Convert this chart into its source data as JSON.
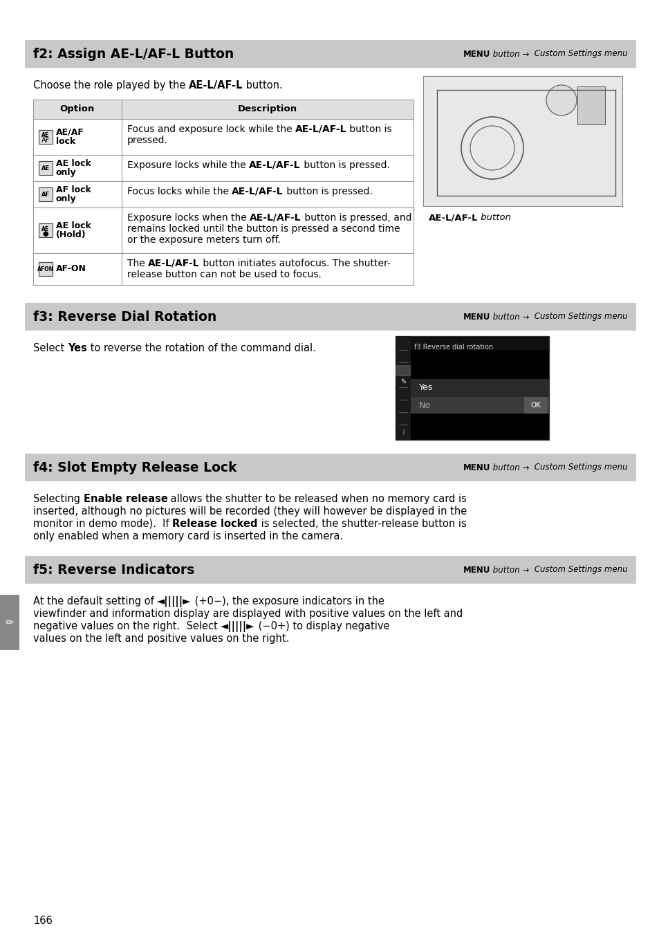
{
  "page_bg": "#ffffff",
  "page_number": "166",
  "f2_title": "f2: Assign AE-L/AF-L Button",
  "f2_menu_text_plain": "MENU",
  "f2_menu_text_italic": " button → ",
  "f2_menu_text_plain2": " Custom Settings menu",
  "f2_intro_plain": "Choose the role played by the ",
  "f2_intro_bold": "AE-L/AF-L",
  "f2_intro_plain2": " button.",
  "f2_col1_header": "Option",
  "f2_col2_header": "Description",
  "f2_rows": [
    {
      "icon_top": "AE",
      "icon_bot": "AF",
      "label_line1": "AE/AF",
      "label_line2": "lock",
      "desc": [
        [
          "Focus and exposure lock while the ",
          false
        ],
        [
          "AE-L/AF-L",
          true
        ],
        [
          " button is",
          false
        ],
        [
          "\npressed.",
          false
        ]
      ]
    },
    {
      "icon_top": "AE",
      "icon_bot": "",
      "label_line1": "AE lock",
      "label_line2": "only",
      "desc": [
        [
          "Exposure locks while the ",
          false
        ],
        [
          "AE-L/AF-L",
          true
        ],
        [
          " button is pressed.",
          false
        ]
      ]
    },
    {
      "icon_top": "AF",
      "icon_bot": "",
      "label_line1": "AF lock",
      "label_line2": "only",
      "desc": [
        [
          "Focus locks while the ",
          false
        ],
        [
          "AE-L/AF-L",
          true
        ],
        [
          " button is pressed.",
          false
        ]
      ]
    },
    {
      "icon_top": "AE",
      "icon_bot": "●",
      "label_line1": "AE lock",
      "label_line2": "(Hold)",
      "desc": [
        [
          "Exposure locks when the ",
          false
        ],
        [
          "AE-L/AF-L",
          true
        ],
        [
          " button is pressed, and",
          false
        ],
        [
          "\nremains locked until the button is pressed a second time",
          false
        ],
        [
          "\nor the exposure meters turn off.",
          false
        ]
      ]
    },
    {
      "icon_top": "AFON",
      "icon_bot": "",
      "label_line1": "AF-ON",
      "label_line2": "",
      "desc": [
        [
          "The ",
          false
        ],
        [
          "AE-L/AF-L",
          true
        ],
        [
          " button initiates autofocus. The shutter-",
          false
        ],
        [
          "\nrelease button can not be used to focus.",
          false
        ]
      ]
    }
  ],
  "cam_caption_bold": "AE-L/AF-L",
  "cam_caption_italic": " button",
  "f3_title": "f3: Reverse Dial Rotation",
  "f3_menu_text_plain": "MENU",
  "f3_menu_text_italic": " button → ",
  "f3_menu_text_plain2": " Custom Settings menu",
  "f3_intro_plain": "Select ",
  "f3_intro_bold": "Yes",
  "f3_intro_plain2": " to reverse the rotation of the command dial.",
  "f4_title": "f4: Slot Empty Release Lock",
  "f4_menu_text_plain": "MENU",
  "f4_menu_text_italic": " button → ",
  "f4_menu_text_plain2": " Custom Settings menu",
  "f4_lines": [
    [
      [
        "Selecting ",
        false
      ],
      [
        "Enable release",
        true
      ],
      [
        " allows the shutter to be released when no memory card is",
        false
      ]
    ],
    [
      [
        "inserted, although no pictures will be recorded (they will however be displayed in the",
        false
      ]
    ],
    [
      [
        "monitor in demo mode).  If ",
        false
      ],
      [
        "Release locked",
        true
      ],
      [
        " is selected, the shutter-release button is",
        false
      ]
    ],
    [
      [
        "only enabled when a memory card is inserted in the camera.",
        false
      ]
    ]
  ],
  "f5_title": "f5: Reverse Indicators",
  "f5_menu_text_plain": "MENU",
  "f5_menu_text_italic": " button → ",
  "f5_menu_text_plain2": " Custom Settings menu",
  "f5_lines": [
    [
      [
        "At the default setting of ",
        false
      ],
      [
        "◄|||||►",
        true
      ],
      [
        " (+0−), the exposure indicators in the",
        false
      ]
    ],
    [
      [
        "viewfinder and information display are displayed with positive values on the left and",
        false
      ]
    ],
    [
      [
        "negative values on the right.  Select ",
        false
      ],
      [
        "◄|||||►",
        true
      ],
      [
        " (−0+) to display negative",
        false
      ]
    ],
    [
      [
        "values on the left and positive values on the right.",
        false
      ]
    ]
  ]
}
